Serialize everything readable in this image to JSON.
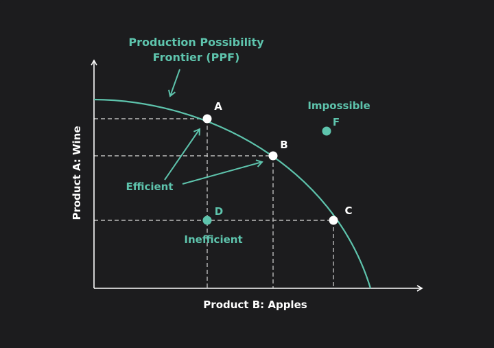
{
  "title_line1": "Production Possibility",
  "title_line2": "Frontier (PPF)",
  "x_axis_label": "Product B: Apples",
  "y_axis_label": "Product A: Wine",
  "points": {
    "A": "A",
    "B": "B",
    "C": "C",
    "D": "D",
    "F": "F"
  },
  "labels": {
    "efficient": "Efficient",
    "inefficient": "Inefficient",
    "impossible": "Impossible"
  },
  "colors": {
    "background": "#1c1c1e",
    "accent": "#5ec4ad",
    "axis": "#ffffff",
    "dashed": "#bbbbbb"
  }
}
